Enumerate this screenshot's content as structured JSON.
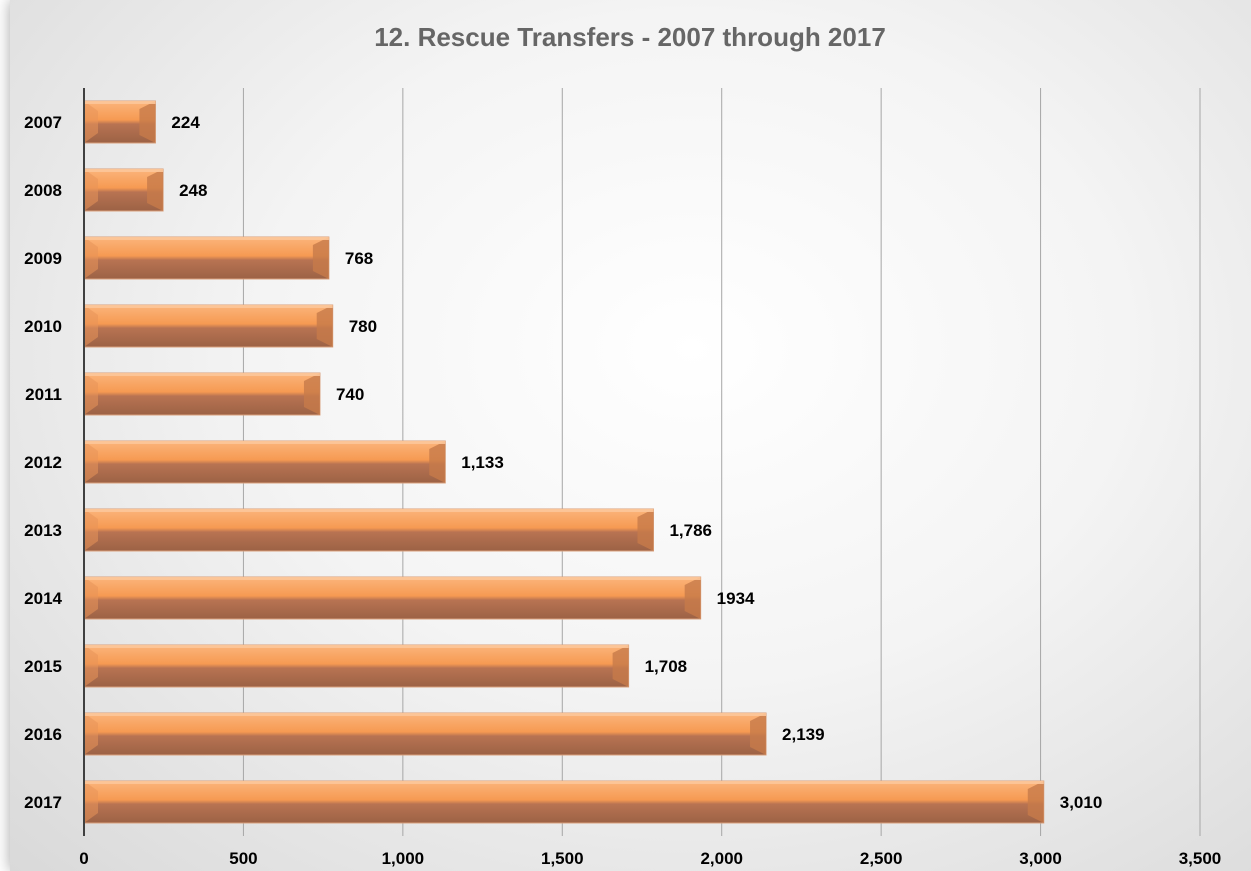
{
  "chart_data": {
    "type": "bar",
    "orientation": "horizontal",
    "title": "12. Rescue Transfers - 2007 through 2017",
    "categories": [
      "2007",
      "2008",
      "2009",
      "2010",
      "2011",
      "2012",
      "2013",
      "2014",
      "2015",
      "2016",
      "2017"
    ],
    "values": [
      224,
      248,
      768,
      780,
      740,
      1133,
      1786,
      1934,
      1708,
      2139,
      3010
    ],
    "data_labels": [
      "224",
      "248",
      "768",
      "780",
      "740",
      "1,133",
      "1,786",
      "1934",
      "1,708",
      "2,139",
      "3,010"
    ],
    "xlim": [
      0,
      3500
    ],
    "xticks": [
      0,
      500,
      1000,
      1500,
      2000,
      2500,
      3000,
      3500
    ],
    "xtick_labels": [
      "0",
      "500",
      "1,000",
      "1,500",
      "2,000",
      "2,500",
      "3,000",
      "3,500"
    ],
    "grid": "vertical",
    "legend": "none",
    "colors": {
      "bar_top": "#f9a15a",
      "bar_bottom": "#a86a4a",
      "bar_face": "#f69a52",
      "gridline": "#a6a6a6",
      "axis": "#404040",
      "title": "#666666"
    }
  }
}
